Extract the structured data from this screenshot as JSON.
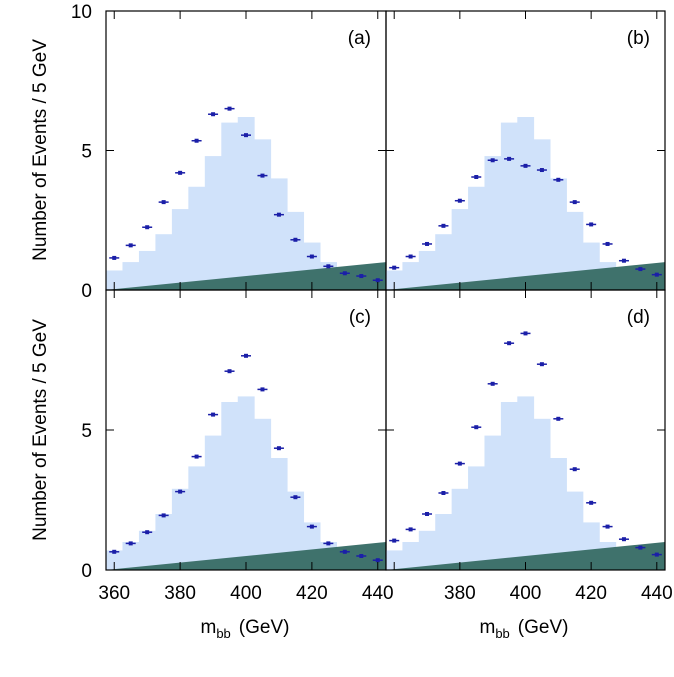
{
  "colors": {
    "signal_fill": "#d0e2fa",
    "background_fill": "#3f726c",
    "points": "#1b1fa8",
    "frame": "#000000"
  },
  "chart_data": {
    "type": "bar",
    "shared": {
      "xlabel_main": "m",
      "xlabel_sub": "bb",
      "xlabel_unit": "(GeV)",
      "ylabel": "Number of Events / 5 GeV",
      "xlim": [
        357.5,
        442.5
      ],
      "ylim": [
        0,
        10
      ],
      "xticks": [
        360,
        380,
        400,
        420,
        440
      ],
      "yticks": [
        0,
        5,
        10
      ],
      "bin_edges": [
        357.5,
        362.5,
        367.5,
        372.5,
        377.5,
        382.5,
        387.5,
        392.5,
        397.5,
        402.5,
        407.5,
        412.5,
        417.5,
        422.5,
        427.5,
        432.5,
        437.5,
        442.5
      ],
      "signal_histogram": [
        0.7,
        1.0,
        1.4,
        2.0,
        2.9,
        3.7,
        4.8,
        6.0,
        6.2,
        5.4,
        4.0,
        2.8,
        1.7,
        1.0,
        0.7,
        0.6,
        0.5
      ],
      "background_start": 0.0,
      "background_end": 1.0
    },
    "panels": [
      {
        "label": "(a)",
        "points_x": [
          360,
          365,
          370,
          375,
          380,
          385,
          390,
          395,
          400,
          405,
          410,
          415,
          420,
          425,
          430,
          435,
          440
        ],
        "points_y": [
          1.15,
          1.6,
          2.25,
          3.15,
          4.2,
          5.35,
          6.3,
          6.5,
          5.55,
          4.1,
          2.7,
          1.8,
          1.2,
          0.85,
          0.6,
          0.5,
          0.35
        ]
      },
      {
        "label": "(b)",
        "points_x": [
          360,
          365,
          370,
          375,
          380,
          385,
          390,
          395,
          400,
          405,
          410,
          415,
          420,
          425,
          430,
          435,
          440
        ],
        "points_y": [
          0.8,
          1.2,
          1.65,
          2.3,
          3.2,
          4.05,
          4.65,
          4.7,
          4.45,
          4.3,
          3.95,
          3.15,
          2.35,
          1.65,
          1.05,
          0.75,
          0.55
        ]
      },
      {
        "label": "(c)",
        "points_x": [
          360,
          365,
          370,
          375,
          380,
          385,
          390,
          395,
          400,
          405,
          410,
          415,
          420,
          425,
          430,
          435,
          440
        ],
        "points_y": [
          0.65,
          0.95,
          1.35,
          1.95,
          2.8,
          4.05,
          5.55,
          7.1,
          7.65,
          6.45,
          4.35,
          2.6,
          1.55,
          0.95,
          0.65,
          0.5,
          0.35
        ]
      },
      {
        "label": "(d)",
        "points_x": [
          360,
          365,
          370,
          375,
          380,
          385,
          390,
          395,
          400,
          405,
          410,
          415,
          420,
          425,
          430,
          435,
          440
        ],
        "points_y": [
          1.05,
          1.45,
          2.0,
          2.75,
          3.8,
          5.1,
          6.65,
          8.1,
          8.45,
          7.35,
          5.4,
          3.6,
          2.4,
          1.55,
          1.1,
          0.8,
          0.55
        ]
      }
    ]
  }
}
